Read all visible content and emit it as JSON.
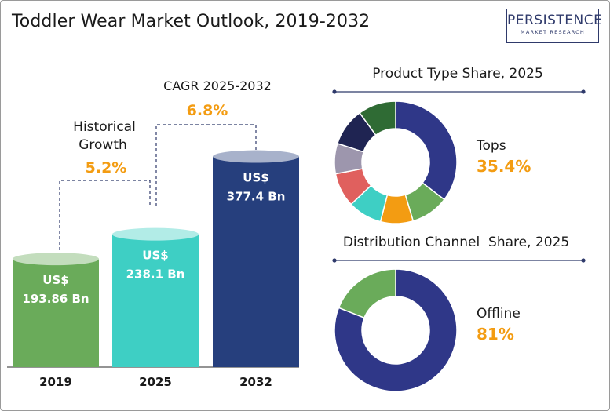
{
  "title": "Toddler Wear Market Outlook, 2019-2032",
  "logo": {
    "main": "PERSISTENCE",
    "sub": "MARKET RESEARCH"
  },
  "colors": {
    "bar_2019": "#6aab5a",
    "bar_2025": "#3ecfc4",
    "bar_2032": "#263f7d",
    "growth_orange": "#f39c12",
    "donut_primary": "#2f3788"
  },
  "chart_data": [
    {
      "type": "bar",
      "title": "",
      "categories": [
        "2019",
        "2025",
        "2032"
      ],
      "values": [
        193.86,
        238.1,
        377.4
      ],
      "value_labels": [
        {
          "prefix": "US$",
          "amount": "193.86 Bn"
        },
        {
          "prefix": "US$",
          "amount": "238.1 Bn"
        },
        {
          "prefix": "US$",
          "amount": "377.4 Bn"
        }
      ],
      "annotations": [
        {
          "label_line1": "Historical",
          "label_line2": "Growth",
          "value": "5.2%"
        },
        {
          "label_line1": "CAGR 2025-2032",
          "value": "6.8%"
        }
      ]
    },
    {
      "type": "pie",
      "title": "Product Type Share, 2025",
      "highlight_label": "Tops",
      "highlight_value": "35.4%",
      "slices": [
        {
          "value": 35.4,
          "color": "#2f3788"
        },
        {
          "value": 10.0,
          "color": "#6aab5a"
        },
        {
          "value": 8.6,
          "color": "#f39c12"
        },
        {
          "value": 9.0,
          "color": "#3ecfc4"
        },
        {
          "value": 9.0,
          "color": "#e0605e"
        },
        {
          "value": 8.0,
          "color": "#9d96ad"
        },
        {
          "value": 10.0,
          "color": "#1f2452"
        },
        {
          "value": 10.0,
          "color": "#2f6b34"
        }
      ]
    },
    {
      "type": "pie",
      "title": "Distribution Channel  Share, 2025",
      "highlight_label": "Offline",
      "highlight_value": "81%",
      "slices": [
        {
          "value": 81,
          "color": "#2f3788"
        },
        {
          "value": 19,
          "color": "#6aab5a"
        }
      ]
    }
  ]
}
